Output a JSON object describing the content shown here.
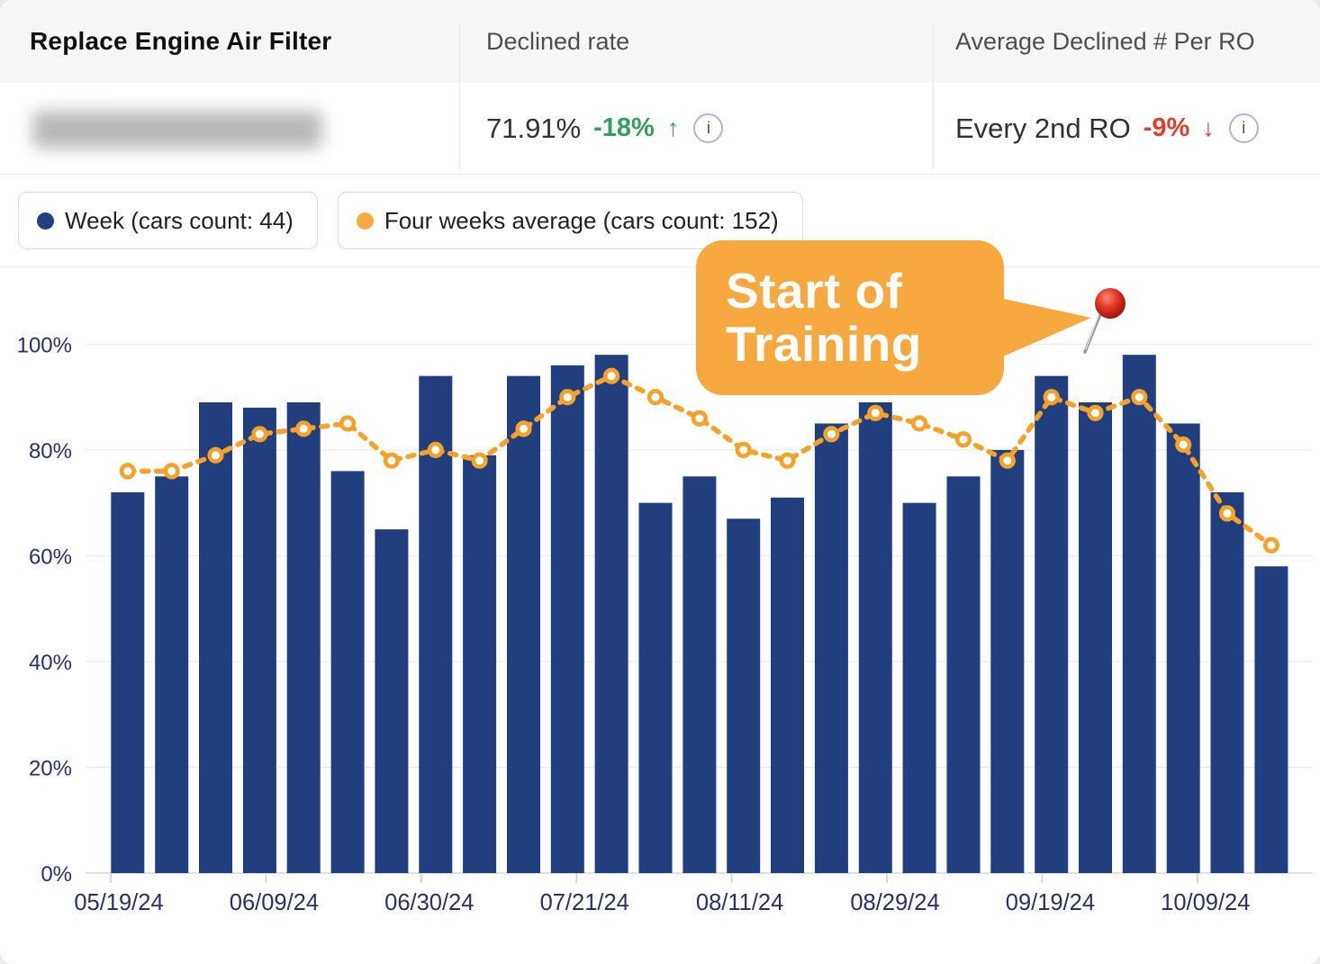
{
  "header": {
    "title": "Replace Engine Air Filter",
    "col2": "Declined rate",
    "col3": "Average Declined # Per RO"
  },
  "stats": {
    "declined_rate": {
      "value": "71.91%",
      "delta": "-18%",
      "arrow": "↑",
      "direction": "up"
    },
    "avg_declined": {
      "value": "Every 2nd RO",
      "delta": "-9%",
      "arrow": "↓",
      "direction": "down"
    },
    "info_glyph": "i"
  },
  "legend": [
    {
      "label": "Week (cars count: 44)",
      "color": "#213e7e"
    },
    {
      "label": "Four weeks average (cars count: 152)",
      "color": "#f8ac40"
    }
  ],
  "annotation": {
    "line1": "Start of",
    "line2": "Training"
  },
  "colors": {
    "bar": "#213e7e",
    "line": "#f6a228",
    "legend_dot_avg": "#f8ac40",
    "callout": "#f7a83e",
    "green": "#30a15c",
    "red": "#e53a2e",
    "navy_text": "#27306b",
    "grid": "#ededed",
    "axis": "#d6d6d6",
    "pin_red": "#d92b20"
  },
  "chart_data": {
    "type": "bar+line",
    "title": "",
    "ylabel": "",
    "ylim": [
      0,
      100
    ],
    "y_ticks": [
      "0%",
      "20%",
      "40%",
      "60%",
      "80%",
      "100%"
    ],
    "x_tick_labels": [
      "05/19/24",
      "06/09/24",
      "06/30/24",
      "07/21/24",
      "08/11/24",
      "08/29/24",
      "09/19/24",
      "10/09/24"
    ],
    "grid": true,
    "legend_position": "top-left",
    "series": [
      {
        "name": "Week",
        "type": "bar",
        "values": [
          72,
          75,
          89,
          88,
          89,
          76,
          65,
          94,
          79,
          94,
          96,
          98,
          70,
          75,
          67,
          71,
          85,
          89,
          70,
          75,
          80,
          94,
          89,
          98,
          85,
          72,
          58
        ]
      },
      {
        "name": "Four weeks average",
        "type": "line",
        "style": "dotted",
        "values": [
          76,
          76,
          79,
          83,
          84,
          85,
          78,
          80,
          78,
          84,
          90,
          94,
          90,
          86,
          80,
          78,
          83,
          87,
          85,
          82,
          78,
          90,
          87,
          90,
          81,
          68,
          62
        ]
      }
    ]
  }
}
